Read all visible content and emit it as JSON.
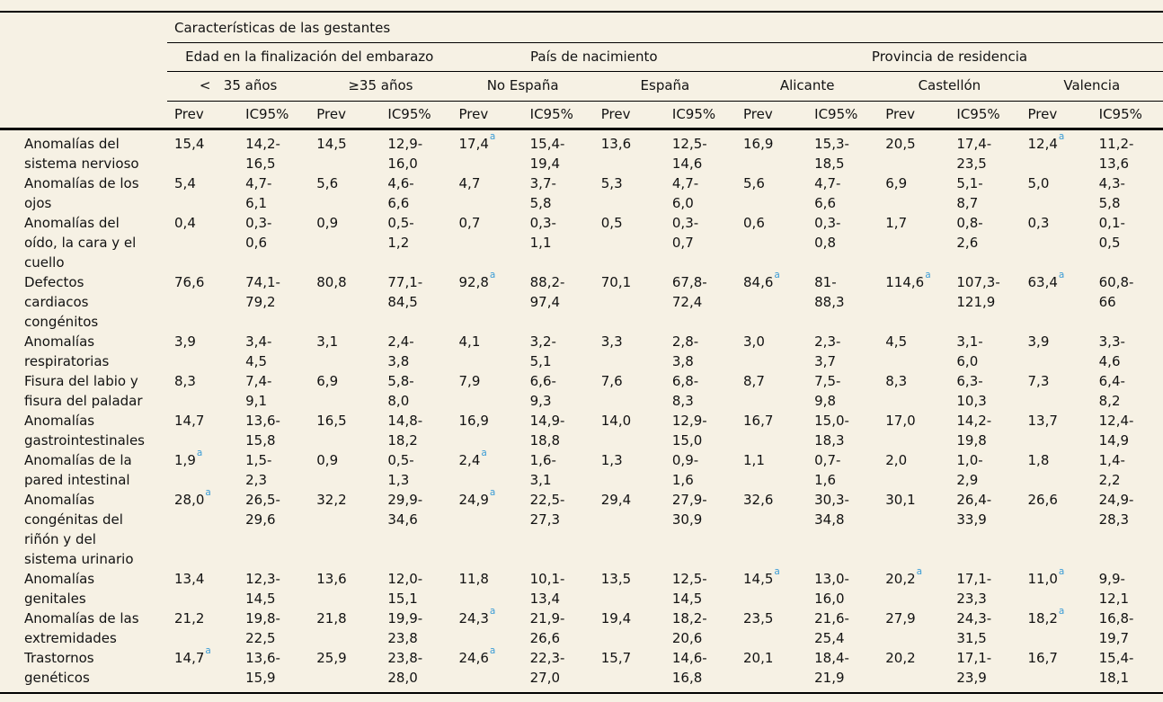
{
  "colors": {
    "background": "#F6F1E4",
    "text": "#121212",
    "rule": "#000000",
    "footnote_blue": "#3D9DD6"
  },
  "table": {
    "caption_row": "Características de las gestantes",
    "column_headers": {
      "prev": "Prev",
      "ic95": "IC95%"
    },
    "footnote_marker": "a",
    "groups": [
      {
        "label": "Edad en la finalización del embarazo",
        "subgroups": [
          "<   35 años",
          "≥35 años"
        ]
      },
      {
        "label": "País de nacimiento",
        "subgroups": [
          "No España",
          "España"
        ]
      },
      {
        "label": "Provincia de residencia",
        "subgroups": [
          "Alicante",
          "Castellón",
          "Valencia"
        ]
      }
    ],
    "rows": [
      {
        "label": "Anomalías del sistema nervioso",
        "cells": [
          {
            "prev": "15,4",
            "sup": false,
            "ic": "14,2-16,5"
          },
          {
            "prev": "14,5",
            "sup": false,
            "ic": "12,9-16,0"
          },
          {
            "prev": "17,4",
            "sup": true,
            "ic": "15,4-19,4"
          },
          {
            "prev": "13,6",
            "sup": false,
            "ic": "12,5-14,6"
          },
          {
            "prev": "16,9",
            "sup": false,
            "ic": "15,3-18,5"
          },
          {
            "prev": "20,5",
            "sup": false,
            "ic": "17,4-23,5"
          },
          {
            "prev": "12,4",
            "sup": true,
            "ic": "11,2-13,6"
          }
        ]
      },
      {
        "label": "Anomalías de los ojos",
        "cells": [
          {
            "prev": "5,4",
            "sup": false,
            "ic": "4,7-6,1"
          },
          {
            "prev": "5,6",
            "sup": false,
            "ic": "4,6-6,6"
          },
          {
            "prev": "4,7",
            "sup": false,
            "ic": "3,7-5,8"
          },
          {
            "prev": "5,3",
            "sup": false,
            "ic": "4,7-6,0"
          },
          {
            "prev": "5,6",
            "sup": false,
            "ic": "4,7-6,6"
          },
          {
            "prev": "6,9",
            "sup": false,
            "ic": "5,1-8,7"
          },
          {
            "prev": "5,0",
            "sup": false,
            "ic": "4,3-5,8"
          }
        ]
      },
      {
        "label": "Anomalías del oído, la cara y el cuello",
        "cells": [
          {
            "prev": "0,4",
            "sup": false,
            "ic": "0,3-0,6"
          },
          {
            "prev": "0,9",
            "sup": false,
            "ic": "0,5-1,2"
          },
          {
            "prev": "0,7",
            "sup": false,
            "ic": "0,3-1,1"
          },
          {
            "prev": "0,5",
            "sup": false,
            "ic": "0,3-0,7"
          },
          {
            "prev": "0,6",
            "sup": false,
            "ic": "0,3-0,8"
          },
          {
            "prev": "1,7",
            "sup": false,
            "ic": "0,8-2,6"
          },
          {
            "prev": "0,3",
            "sup": false,
            "ic": "0,1-0,5"
          }
        ]
      },
      {
        "label": "Defectos cardiacos congénitos",
        "cells": [
          {
            "prev": "76,6",
            "sup": false,
            "ic": "74,1-79,2"
          },
          {
            "prev": "80,8",
            "sup": false,
            "ic": "77,1-84,5"
          },
          {
            "prev": "92,8",
            "sup": true,
            "ic": "88,2-97,4"
          },
          {
            "prev": "70,1",
            "sup": false,
            "ic": "67,8-72,4"
          },
          {
            "prev": "84,6",
            "sup": true,
            "ic": "81-88,3"
          },
          {
            "prev": "114,6",
            "sup": true,
            "ic": "107,3-121,9"
          },
          {
            "prev": "63,4",
            "sup": true,
            "ic": "60,8-66"
          }
        ]
      },
      {
        "label": "Anomalías respiratorias",
        "cells": [
          {
            "prev": "3,9",
            "sup": false,
            "ic": "3,4-4,5"
          },
          {
            "prev": "3,1",
            "sup": false,
            "ic": "2,4-3,8"
          },
          {
            "prev": "4,1",
            "sup": false,
            "ic": "3,2-5,1"
          },
          {
            "prev": "3,3",
            "sup": false,
            "ic": "2,8-3,8"
          },
          {
            "prev": "3,0",
            "sup": false,
            "ic": "2,3-3,7"
          },
          {
            "prev": "4,5",
            "sup": false,
            "ic": "3,1-6,0"
          },
          {
            "prev": "3,9",
            "sup": false,
            "ic": "3,3-4,6"
          }
        ]
      },
      {
        "label": "Fisura del labio y fisura del paladar",
        "cells": [
          {
            "prev": "8,3",
            "sup": false,
            "ic": "7,4-9,1"
          },
          {
            "prev": "6,9",
            "sup": false,
            "ic": "5,8-8,0"
          },
          {
            "prev": "7,9",
            "sup": false,
            "ic": "6,6-9,3"
          },
          {
            "prev": "7,6",
            "sup": false,
            "ic": "6,8-8,3"
          },
          {
            "prev": "8,7",
            "sup": false,
            "ic": "7,5-9,8"
          },
          {
            "prev": "8,3",
            "sup": false,
            "ic": "6,3-10,3"
          },
          {
            "prev": "7,3",
            "sup": false,
            "ic": "6,4-8,2"
          }
        ]
      },
      {
        "label": "Anomalías gastrointestinales",
        "cells": [
          {
            "prev": "14,7",
            "sup": false,
            "ic": "13,6-15,8"
          },
          {
            "prev": "16,5",
            "sup": false,
            "ic": "14,8-18,2"
          },
          {
            "prev": "16,9",
            "sup": false,
            "ic": "14,9-18,8"
          },
          {
            "prev": "14,0",
            "sup": false,
            "ic": "12,9-15,0"
          },
          {
            "prev": "16,7",
            "sup": false,
            "ic": "15,0-18,3"
          },
          {
            "prev": "17,0",
            "sup": false,
            "ic": "14,2-19,8"
          },
          {
            "prev": "13,7",
            "sup": false,
            "ic": "12,4-14,9"
          }
        ]
      },
      {
        "label": "Anomalías de la pared intestinal",
        "cells": [
          {
            "prev": "1,9",
            "sup": true,
            "ic": "1,5-2,3"
          },
          {
            "prev": "0,9",
            "sup": false,
            "ic": "0,5-1,3"
          },
          {
            "prev": "2,4",
            "sup": true,
            "ic": "1,6-3,1"
          },
          {
            "prev": "1,3",
            "sup": false,
            "ic": "0,9-1,6"
          },
          {
            "prev": "1,1",
            "sup": false,
            "ic": "0,7-1,6"
          },
          {
            "prev": "2,0",
            "sup": false,
            "ic": "1,0-2,9"
          },
          {
            "prev": "1,8",
            "sup": false,
            "ic": "1,4-2,2"
          }
        ]
      },
      {
        "label": "Anomalías congénitas del riñón y del sistema urinario",
        "cells": [
          {
            "prev": "28,0",
            "sup": true,
            "ic": "26,5-29,6"
          },
          {
            "prev": "32,2",
            "sup": false,
            "ic": "29,9-34,6"
          },
          {
            "prev": "24,9",
            "sup": true,
            "ic": "22,5-27,3"
          },
          {
            "prev": "29,4",
            "sup": false,
            "ic": "27,9-30,9"
          },
          {
            "prev": "32,6",
            "sup": false,
            "ic": "30,3-34,8"
          },
          {
            "prev": "30,1",
            "sup": false,
            "ic": "26,4-33,9"
          },
          {
            "prev": "26,6",
            "sup": false,
            "ic": "24,9-28,3"
          }
        ]
      },
      {
        "label": "Anomalías genitales",
        "cells": [
          {
            "prev": "13,4",
            "sup": false,
            "ic": "12,3-14,5"
          },
          {
            "prev": "13,6",
            "sup": false,
            "ic": "12,0-15,1"
          },
          {
            "prev": "11,8",
            "sup": false,
            "ic": "10,1-13,4"
          },
          {
            "prev": "13,5",
            "sup": false,
            "ic": "12,5-14,5"
          },
          {
            "prev": "14,5",
            "sup": true,
            "ic": "13,0-16,0"
          },
          {
            "prev": "20,2",
            "sup": true,
            "ic": "17,1-23,3"
          },
          {
            "prev": "11,0",
            "sup": true,
            "ic": "9,9-12,1"
          }
        ]
      },
      {
        "label": "Anomalías de las extremidades",
        "cells": [
          {
            "prev": "21,2",
            "sup": false,
            "ic": "19,8-22,5"
          },
          {
            "prev": "21,8",
            "sup": false,
            "ic": "19,9-23,8"
          },
          {
            "prev": "24,3",
            "sup": true,
            "ic": "21,9-26,6"
          },
          {
            "prev": "19,4",
            "sup": false,
            "ic": "18,2-20,6"
          },
          {
            "prev": "23,5",
            "sup": false,
            "ic": "21,6-25,4"
          },
          {
            "prev": "27,9",
            "sup": false,
            "ic": "24,3-31,5"
          },
          {
            "prev": "18,2",
            "sup": true,
            "ic": "16,8-19,7"
          }
        ]
      },
      {
        "label": "Trastornos genéticos",
        "cells": [
          {
            "prev": "14,7",
            "sup": true,
            "ic": "13,6-15,9"
          },
          {
            "prev": "25,9",
            "sup": false,
            "ic": "23,8-28,0"
          },
          {
            "prev": "24,6",
            "sup": true,
            "ic": "22,3-27,0"
          },
          {
            "prev": "15,7",
            "sup": false,
            "ic": "14,6-16,8"
          },
          {
            "prev": "20,1",
            "sup": false,
            "ic": "18,4-21,9"
          },
          {
            "prev": "20,2",
            "sup": false,
            "ic": "17,1-23,9"
          },
          {
            "prev": "16,7",
            "sup": false,
            "ic": "15,4-18,1"
          }
        ]
      }
    ]
  }
}
